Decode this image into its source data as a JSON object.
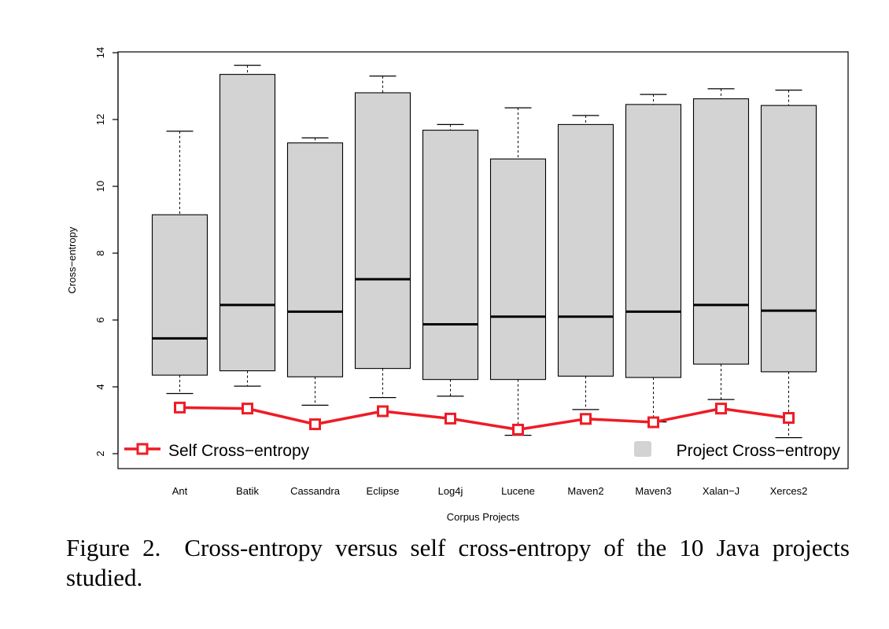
{
  "chart_data": {
    "type": "box",
    "xlabel": "Corpus Projects",
    "ylabel": "Cross−entropy",
    "ylim": [
      1.8,
      14
    ],
    "yticks": [
      2,
      4,
      6,
      8,
      10,
      12,
      14
    ],
    "legend": {
      "placement": "bottom",
      "line_label": "Self Cross−entropy",
      "box_label": "Project Cross−entropy"
    },
    "colors": {
      "box_fill": "#d3d3d3",
      "line": "#ee1c25",
      "median": "#000000"
    },
    "categories": [
      "Ant",
      "Batik",
      "Cassandra",
      "Eclipse",
      "Log4j",
      "Lucene",
      "Maven2",
      "Maven3",
      "Xalan−J",
      "Xerces2"
    ],
    "boxes": [
      {
        "min": 3.8,
        "q1": 4.35,
        "median": 5.45,
        "q3": 9.15,
        "max": 11.65
      },
      {
        "min": 4.02,
        "q1": 4.48,
        "median": 6.45,
        "q3": 13.35,
        "max": 13.62
      },
      {
        "min": 3.45,
        "q1": 4.3,
        "median": 6.25,
        "q3": 11.3,
        "max": 11.45
      },
      {
        "min": 3.68,
        "q1": 4.55,
        "median": 7.22,
        "q3": 12.8,
        "max": 13.3
      },
      {
        "min": 3.72,
        "q1": 4.22,
        "median": 5.87,
        "q3": 11.68,
        "max": 11.85
      },
      {
        "min": 2.55,
        "q1": 4.22,
        "median": 6.1,
        "q3": 10.82,
        "max": 12.35
      },
      {
        "min": 3.32,
        "q1": 4.32,
        "median": 6.1,
        "q3": 11.85,
        "max": 12.12
      },
      {
        "min": 2.95,
        "q1": 4.28,
        "median": 6.25,
        "q3": 12.45,
        "max": 12.75
      },
      {
        "min": 3.62,
        "q1": 4.68,
        "median": 6.45,
        "q3": 12.62,
        "max": 12.92
      },
      {
        "min": 2.48,
        "q1": 4.45,
        "median": 6.28,
        "q3": 12.42,
        "max": 12.88
      }
    ],
    "self_cross_entropy": [
      3.38,
      3.35,
      2.88,
      3.27,
      3.05,
      2.72,
      3.04,
      2.94,
      3.35,
      3.07
    ]
  },
  "caption": {
    "label": "Figure 2.",
    "text": "Cross-entropy versus self cross-entropy of the 10 Java projects studied."
  }
}
